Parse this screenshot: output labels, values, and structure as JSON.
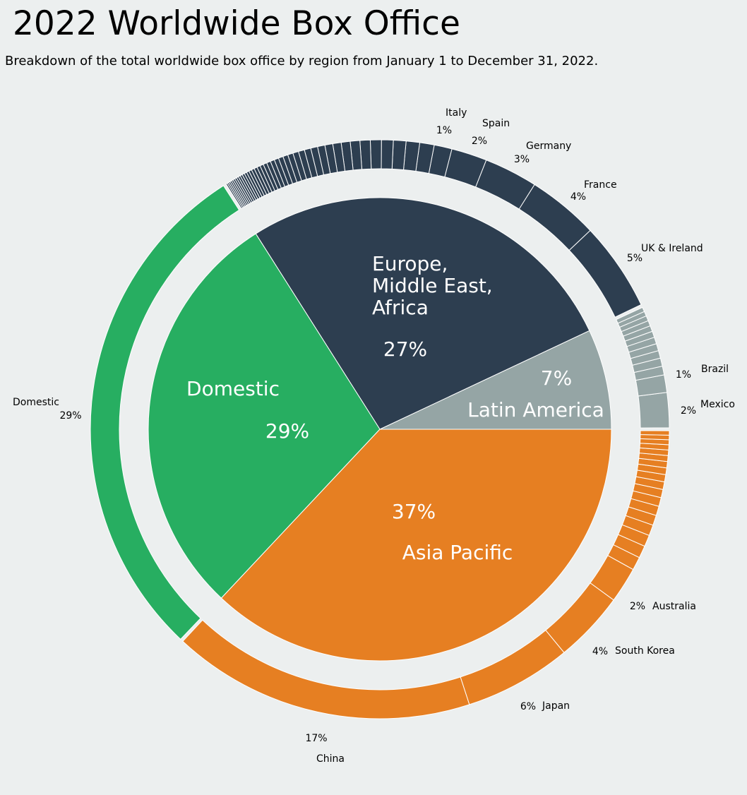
{
  "title": "2022 Worldwide Box Office",
  "subtitle": "Breakdown of the total worldwide box office by region from January 1 to December 31, 2022.",
  "colors": {
    "background": "#ecefef",
    "latin_america": "#95a5a5",
    "emea": "#2d3e50",
    "domestic": "#27ae61",
    "asia_pacific": "#e67f22",
    "separator": "#ffffff"
  },
  "chart_data": {
    "type": "pie",
    "inner": [
      {
        "name": "Latin America",
        "value": 7,
        "label": "7%"
      },
      {
        "name": "Europe, Middle East, Africa",
        "value": 27,
        "label": "27%"
      },
      {
        "name": "Domestic",
        "value": 29,
        "label": "29%"
      },
      {
        "name": "Asia Pacific",
        "value": 37,
        "label": "37%"
      }
    ],
    "inner_display": [
      {
        "lines": [
          "Latin America"
        ],
        "pct": "7%"
      },
      {
        "lines": [
          "Europe,",
          "Middle East,",
          "Africa"
        ],
        "pct": "27%"
      },
      {
        "lines": [
          "Domestic"
        ],
        "pct": "29%"
      },
      {
        "lines": [
          "Asia Pacific"
        ],
        "pct": "37%"
      }
    ],
    "outer": [
      {
        "region": "Latin America",
        "name": "Mexico",
        "value": 2,
        "label": "2%"
      },
      {
        "region": "Latin America",
        "name": "Brazil",
        "value": 1,
        "label": "1%"
      },
      {
        "region": "Latin America",
        "name": "",
        "value": 4,
        "unlabeled_count": 11
      },
      {
        "region": "Europe, Middle East, Africa",
        "name": "UK & Ireland",
        "value": 5,
        "label": "5%"
      },
      {
        "region": "Europe, Middle East, Africa",
        "name": "France",
        "value": 4,
        "label": "4%"
      },
      {
        "region": "Europe, Middle East, Africa",
        "name": "Germany",
        "value": 3,
        "label": "3%"
      },
      {
        "region": "Europe, Middle East, Africa",
        "name": "Spain",
        "value": 2,
        "label": "2%"
      },
      {
        "region": "Europe, Middle East, Africa",
        "name": "Italy",
        "value": 1,
        "label": "1%"
      },
      {
        "region": "Europe, Middle East, Africa",
        "name": "",
        "value": 12,
        "unlabeled_count": 40
      },
      {
        "region": "Domestic",
        "name": "Domestic",
        "value": 29,
        "label": "29%"
      },
      {
        "region": "Asia Pacific",
        "name": "China",
        "value": 17,
        "label": "17%"
      },
      {
        "region": "Asia Pacific",
        "name": "Japan",
        "value": 6,
        "label": "6%"
      },
      {
        "region": "Asia Pacific",
        "name": "South Korea",
        "value": 4,
        "label": "4%"
      },
      {
        "region": "Asia Pacific",
        "name": "Australia",
        "value": 2,
        "label": "2%"
      },
      {
        "region": "Asia Pacific",
        "name": "",
        "value": 8,
        "unlabeled_count": 18
      }
    ],
    "start_angle_deg": 0,
    "direction": "counterclockwise"
  }
}
